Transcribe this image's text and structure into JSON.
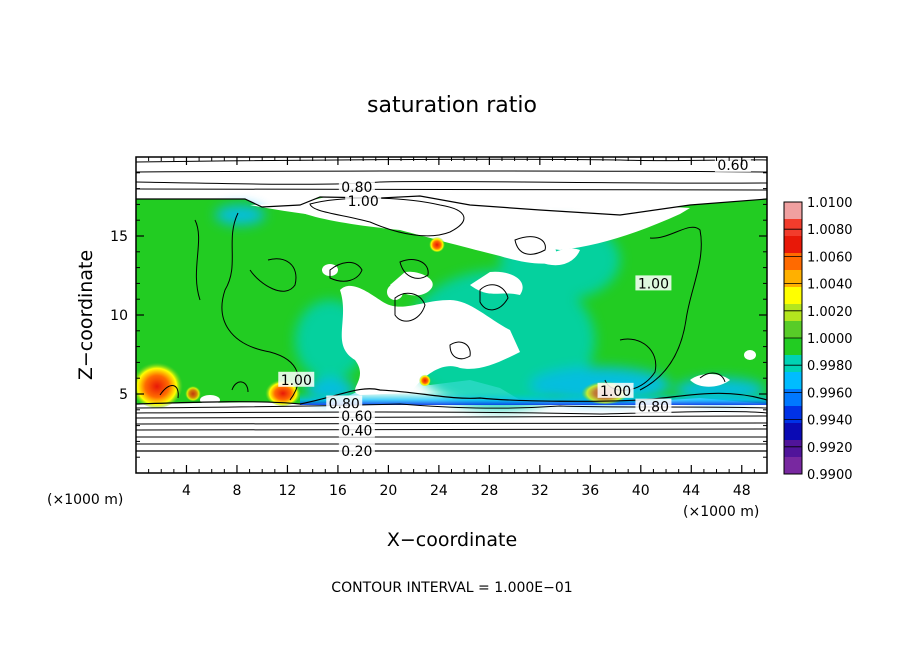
{
  "chart_data": {
    "type": "heatmap",
    "title": "saturation ratio",
    "xlabel": "X−coordinate",
    "ylabel": "Z−coordinate",
    "x_unit_left": "(×1000 m)",
    "x_unit_right": "(×1000 m)",
    "xlim": [
      0,
      50
    ],
    "ylim": [
      0,
      20
    ],
    "xticks": [
      4,
      8,
      12,
      16,
      20,
      24,
      28,
      32,
      36,
      40,
      44,
      48
    ],
    "yticks": [
      5,
      10,
      15
    ],
    "footer": "CONTOUR INTERVAL = 1.000E−01",
    "contour_labels": [
      {
        "text": "0.60",
        "x": 47.3,
        "y": 19.5
      },
      {
        "text": "0.80",
        "x": 17.5,
        "y": 18.1
      },
      {
        "text": "1.00",
        "x": 18.0,
        "y": 17.2
      },
      {
        "text": "1.00",
        "x": 12.7,
        "y": 5.9
      },
      {
        "text": "1.00",
        "x": 41.0,
        "y": 12.0
      },
      {
        "text": "1.00",
        "x": 38.0,
        "y": 5.2
      },
      {
        "text": "0.80",
        "x": 16.5,
        "y": 4.4
      },
      {
        "text": "0.60",
        "x": 17.5,
        "y": 3.6
      },
      {
        "text": "0.40",
        "x": 17.5,
        "y": 2.7
      },
      {
        "text": "0.20",
        "x": 17.5,
        "y": 1.4
      },
      {
        "text": "0.80",
        "x": 41.0,
        "y": 4.2
      }
    ],
    "colorbar": {
      "labels": [
        "1.0100",
        "1.0080",
        "1.0060",
        "1.0040",
        "1.0020",
        "1.0000",
        "0.9980",
        "0.9960",
        "0.9940",
        "0.9920",
        "0.9900"
      ],
      "colors": [
        "#f0a0a0",
        "#f23c2c",
        "#e81808",
        "#ff6a00",
        "#ffb000",
        "#ffff00",
        "#b4e61e",
        "#58cc28",
        "#22cc22",
        "#00d2b4",
        "#00bcff",
        "#0078ff",
        "#0032e6",
        "#0a0ab4",
        "#50149a",
        "#7828a0"
      ]
    },
    "field_regions": {
      "saturated_layer_z": [
        4.3,
        17.5
      ],
      "hot_spots": [
        {
          "x": 1.5,
          "z": 5.0,
          "value": 1.008
        },
        {
          "x": 11.5,
          "z": 4.7,
          "value": 1.006
        },
        {
          "x": 23.5,
          "z": 14.8,
          "value": 1.006
        },
        {
          "x": 22.8,
          "z": 5.8,
          "value": 1.004
        },
        {
          "x": 37.5,
          "z": 5.0,
          "value": 1.003
        }
      ]
    }
  }
}
